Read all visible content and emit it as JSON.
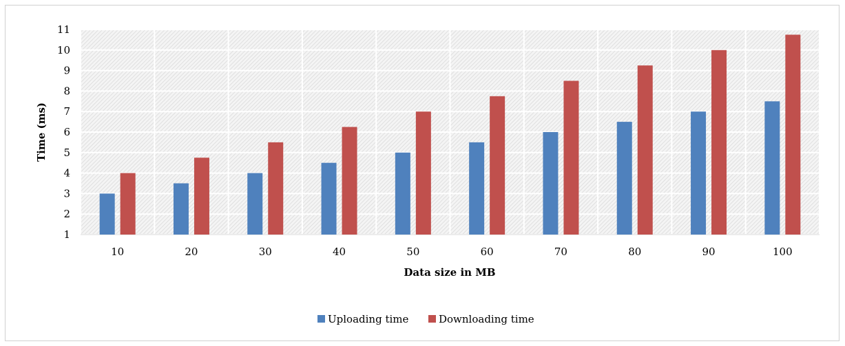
{
  "chart_data": {
    "type": "bar",
    "title": "",
    "xlabel": "Data size in MB",
    "ylabel": "Time (ms)",
    "categories": [
      "10",
      "20",
      "30",
      "40",
      "50",
      "60",
      "70",
      "80",
      "90",
      "100"
    ],
    "ylim": [
      1,
      11
    ],
    "yticks": [
      "1",
      "2",
      "3",
      "4",
      "5",
      "6",
      "7",
      "8",
      "9",
      "10",
      "11"
    ],
    "grid": true,
    "legend": "bottom",
    "series": [
      {
        "name": "Uploading time",
        "color": "#4f81bd",
        "values": [
          3,
          3.5,
          4,
          4.5,
          5,
          5.5,
          6,
          6.5,
          7,
          7.5
        ]
      },
      {
        "name": "Downloading time",
        "color": "#c0504d",
        "values": [
          4,
          4.75,
          5.5,
          6.25,
          7,
          7.75,
          8.5,
          9.25,
          10,
          10.75
        ]
      }
    ]
  }
}
